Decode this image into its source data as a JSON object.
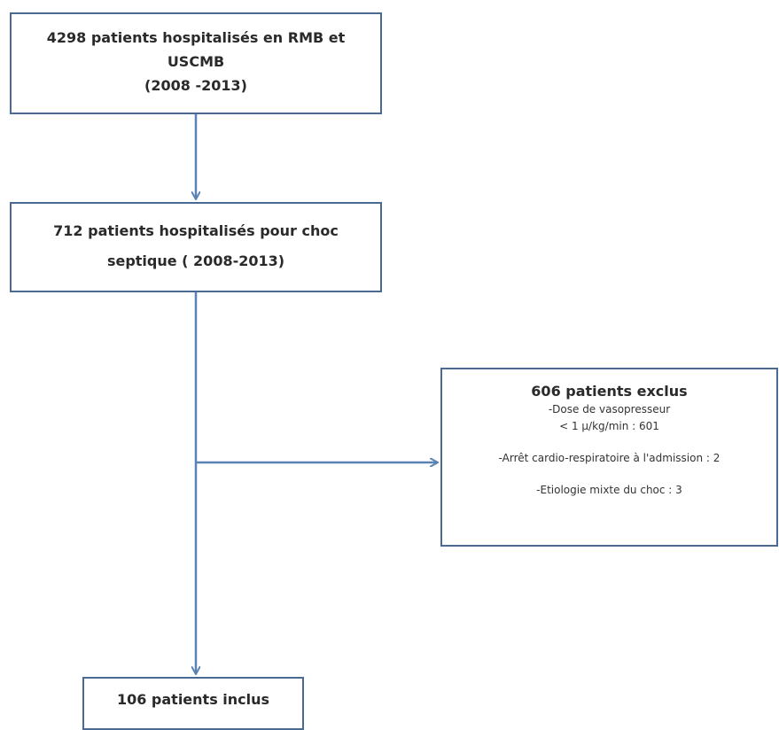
{
  "boxes": {
    "total": {
      "lines": [
        "4298 patients hospitalisés en RMB et",
        "USCMB",
        "(2008 -2013)"
      ]
    },
    "septic": {
      "lines": [
        "712 patients hospitalisés pour choc",
        "septique ( 2008-2013)"
      ]
    },
    "excluded": {
      "title": "606 patients exclus",
      "criteria": [
        "-Dose de vasopresseur",
        "< 1 µ/kg/min : 601",
        "-Arrêt cardio-respiratoire à l'admission : 2",
        "-Etiologie mixte du choc : 3"
      ]
    },
    "included": {
      "title": "106 patients inclus"
    }
  },
  "colors": {
    "border": "#4a6a93",
    "arrow": "#5b82b4",
    "text": "#2a2a2a"
  }
}
